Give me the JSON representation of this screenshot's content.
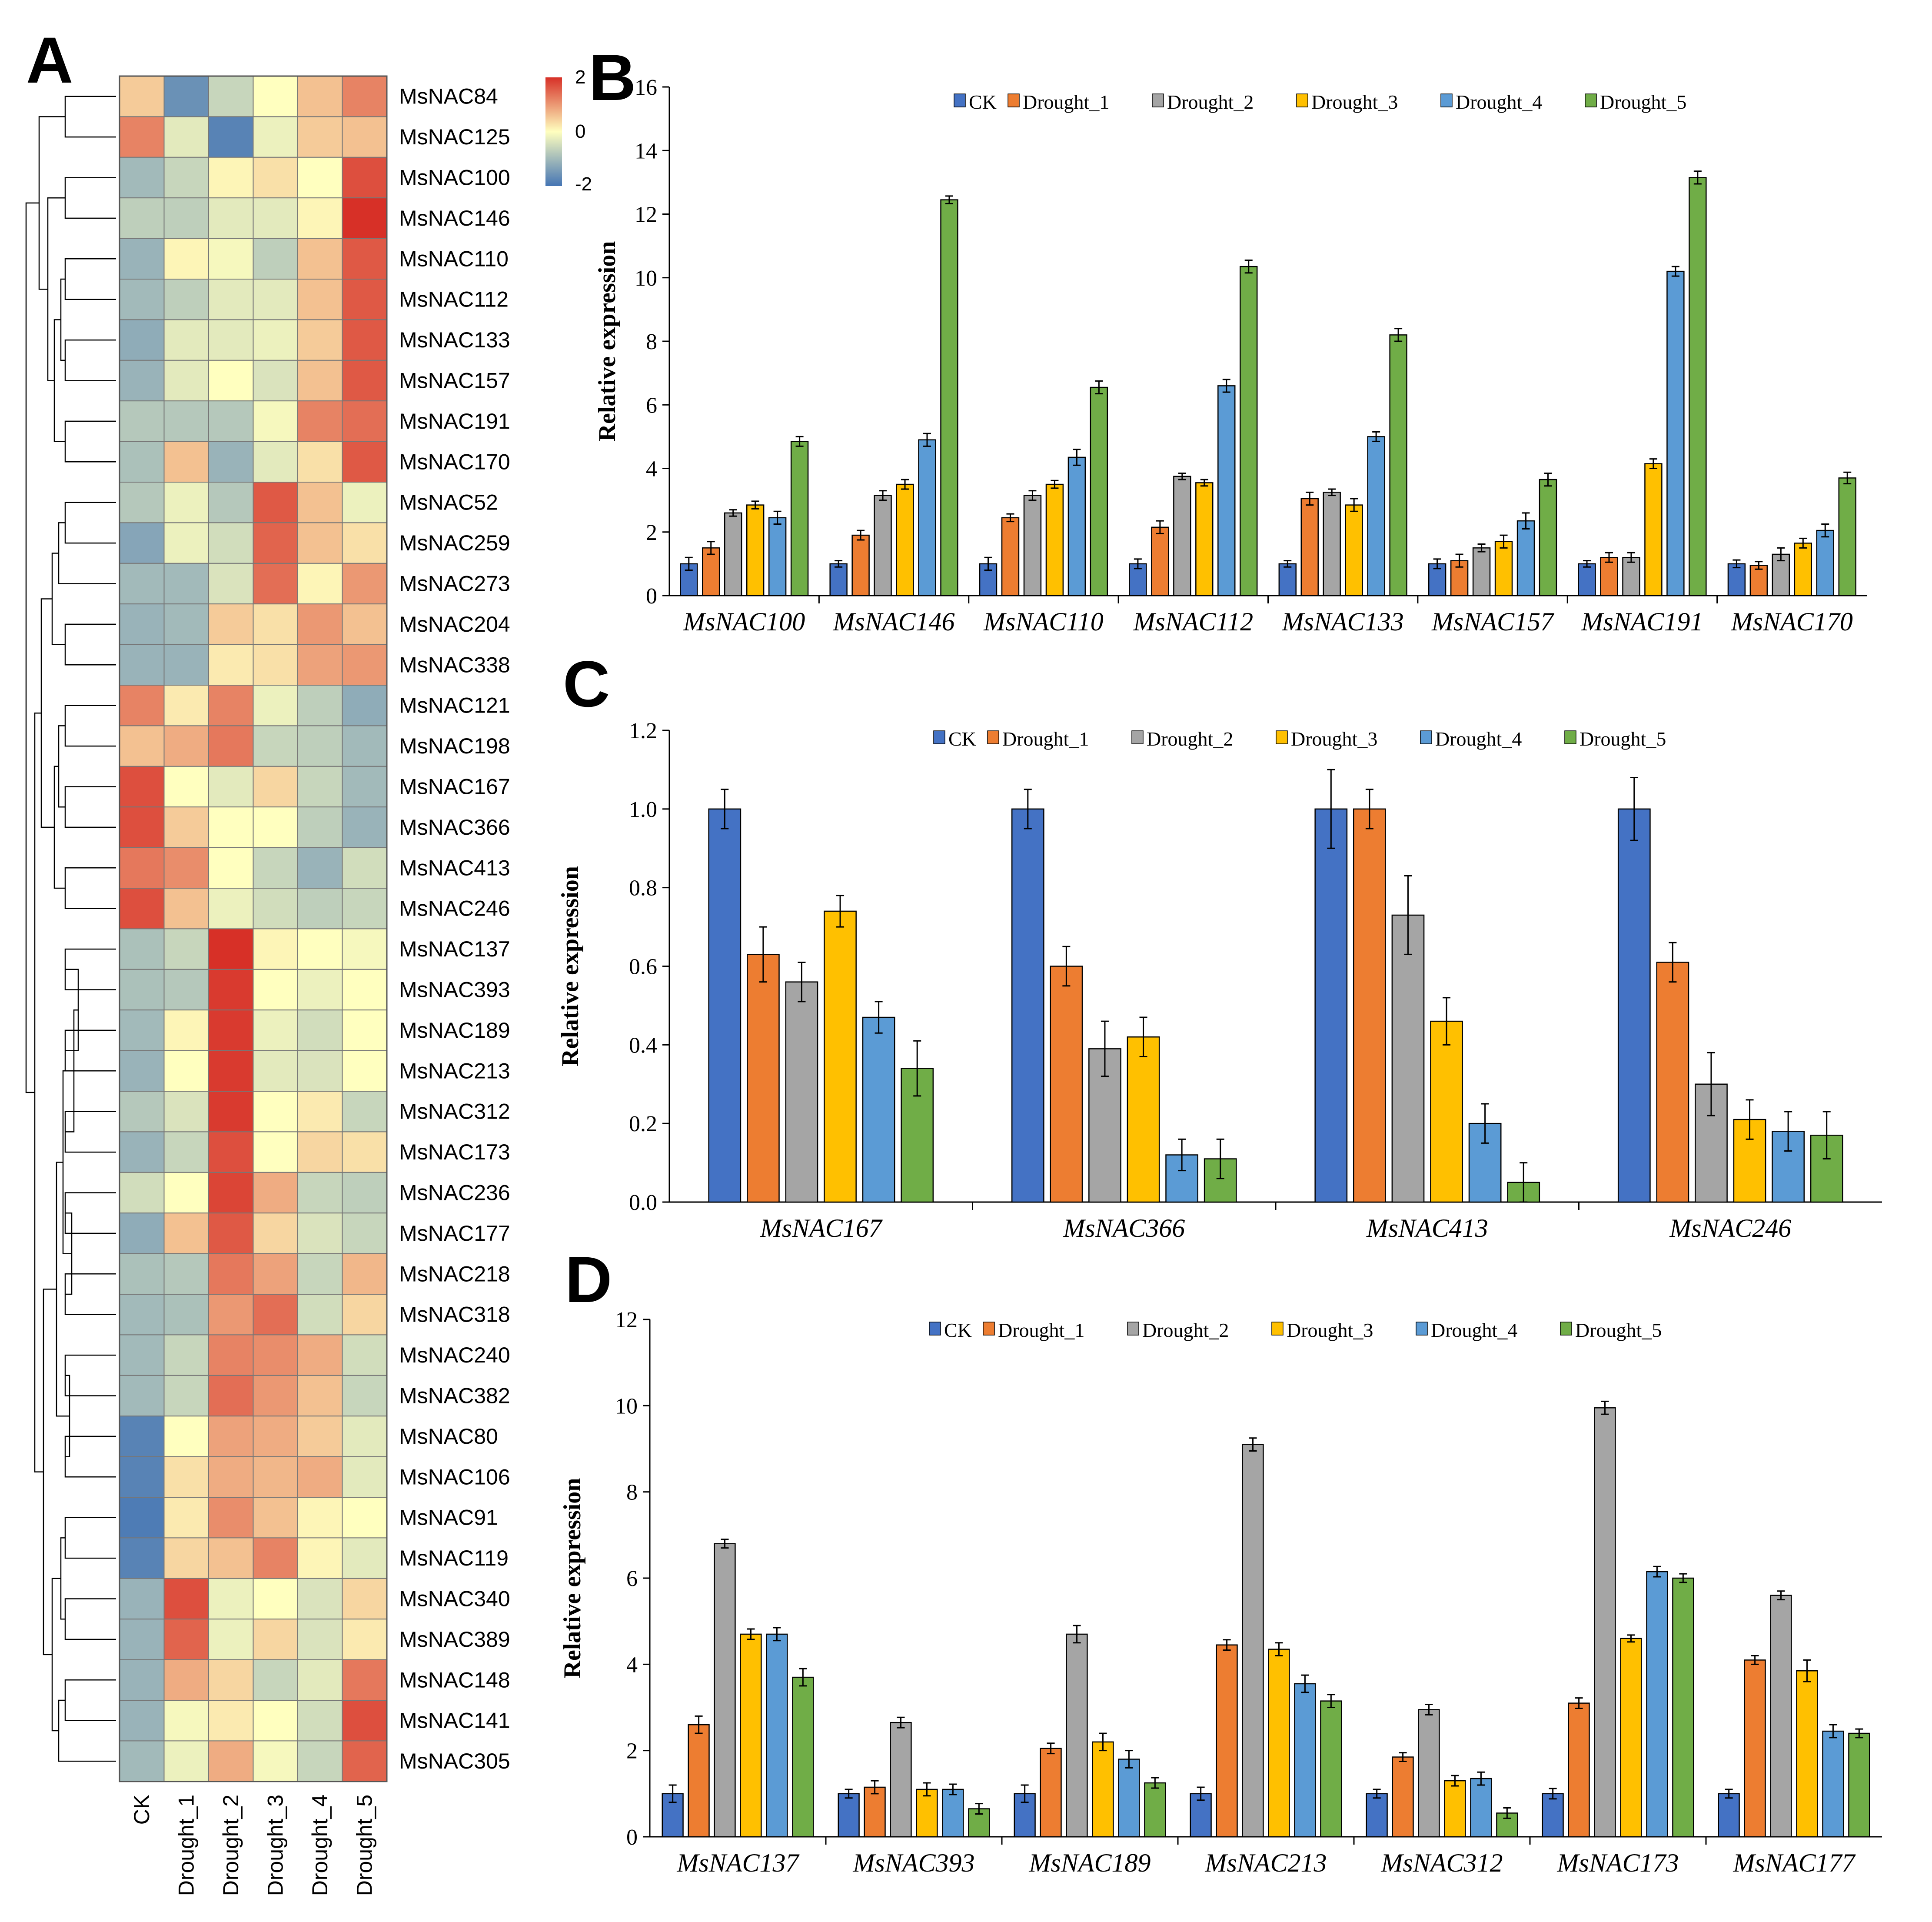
{
  "colors": {
    "series": [
      "#4472C4",
      "#ED7D31",
      "#A5A5A5",
      "#FFC000",
      "#5B9BD5",
      "#70AD47"
    ],
    "heat_low": "#4575b4",
    "heat_mid": "#ffffbf",
    "heat_high": "#d73027"
  },
  "panels": {
    "a": "A",
    "b": "B",
    "c": "C",
    "d": "D"
  },
  "chart_data": [
    {
      "type": "heatmap",
      "panel": "A",
      "title": "",
      "columns": [
        "CK",
        "Drought_1",
        "Drought_2",
        "Drought_3",
        "Drought_4",
        "Drought_5"
      ],
      "rows": [
        "MsNAC84",
        "MsNAC125",
        "MsNAC100",
        "MsNAC146",
        "MsNAC110",
        "MsNAC112",
        "MsNAC133",
        "MsNAC157",
        "MsNAC191",
        "MsNAC170",
        "MsNAC52",
        "MsNAC259",
        "MsNAC273",
        "MsNAC204",
        "MsNAC338",
        "MsNAC121",
        "MsNAC198",
        "MsNAC167",
        "MsNAC366",
        "MsNAC413",
        "MsNAC246",
        "MsNAC137",
        "MsNAC393",
        "MsNAC189",
        "MsNAC213",
        "MsNAC312",
        "MsNAC173",
        "MsNAC236",
        "MsNAC177",
        "MsNAC218",
        "MsNAC318",
        "MsNAC240",
        "MsNAC382",
        "MsNAC80",
        "MsNAC106",
        "MsNAC91",
        "MsNAC119",
        "MsNAC340",
        "MsNAC389",
        "MsNAC148",
        "MsNAC141",
        "MsNAC305"
      ],
      "values": [
        [
          0.5,
          -1.6,
          -0.6,
          0.0,
          0.6,
          1.2
        ],
        [
          1.2,
          -0.3,
          -1.8,
          -0.2,
          0.5,
          0.6
        ],
        [
          -1.0,
          -0.6,
          0.1,
          0.3,
          0.0,
          1.7
        ],
        [
          -0.7,
          -0.7,
          -0.3,
          -0.3,
          0.1,
          2.0
        ],
        [
          -1.1,
          0.1,
          -0.1,
          -0.7,
          0.6,
          1.6
        ],
        [
          -1.0,
          -0.7,
          -0.3,
          -0.3,
          0.6,
          1.6
        ],
        [
          -1.2,
          -0.3,
          -0.3,
          -0.2,
          0.5,
          1.6
        ],
        [
          -1.1,
          -0.3,
          0.0,
          -0.4,
          0.6,
          1.6
        ],
        [
          -0.8,
          -0.8,
          -0.8,
          -0.1,
          1.2,
          1.4
        ],
        [
          -0.9,
          0.6,
          -1.1,
          -0.3,
          0.3,
          1.6
        ],
        [
          -0.8,
          -0.2,
          -0.8,
          1.6,
          0.6,
          -0.2
        ],
        [
          -1.3,
          -0.2,
          -0.5,
          1.5,
          0.6,
          0.3
        ],
        [
          -1.0,
          -1.0,
          -0.4,
          1.4,
          0.1,
          1.0
        ],
        [
          -1.1,
          -1.0,
          0.5,
          0.3,
          1.0,
          0.6
        ],
        [
          -1.1,
          -1.1,
          0.2,
          0.3,
          0.9,
          1.0
        ],
        [
          1.2,
          0.2,
          1.2,
          -0.2,
          -0.7,
          -1.2
        ],
        [
          0.6,
          0.8,
          1.3,
          -0.6,
          -0.7,
          -1.0
        ],
        [
          1.7,
          0.0,
          -0.3,
          0.4,
          -0.6,
          -1.0
        ],
        [
          1.7,
          0.5,
          0.0,
          0.0,
          -0.7,
          -1.1
        ],
        [
          1.3,
          1.1,
          0.0,
          -0.6,
          -1.1,
          -0.5
        ],
        [
          1.7,
          0.6,
          -0.2,
          -0.5,
          -0.7,
          -0.6
        ],
        [
          -0.9,
          -0.6,
          2.0,
          0.1,
          0.0,
          -0.1
        ],
        [
          -0.9,
          -0.8,
          1.9,
          0.0,
          -0.2,
          0.0
        ],
        [
          -1.0,
          0.1,
          1.9,
          -0.2,
          -0.5,
          0.0
        ],
        [
          -1.1,
          0.0,
          1.9,
          -0.3,
          -0.4,
          0.0
        ],
        [
          -0.8,
          -0.4,
          1.9,
          0.0,
          0.2,
          -0.6
        ],
        [
          -1.1,
          -0.6,
          1.7,
          0.0,
          0.4,
          0.3
        ],
        [
          -0.5,
          0.0,
          1.8,
          0.8,
          -0.6,
          -0.7
        ],
        [
          -1.2,
          0.6,
          1.6,
          0.4,
          -0.4,
          -0.6
        ],
        [
          -0.9,
          -0.8,
          1.3,
          0.9,
          -0.6,
          0.7
        ],
        [
          -1.0,
          -0.9,
          1.0,
          1.4,
          -0.5,
          0.4
        ],
        [
          -1.0,
          -0.6,
          1.2,
          1.1,
          0.8,
          -0.5
        ],
        [
          -1.0,
          -0.6,
          1.4,
          1.0,
          0.6,
          -0.6
        ],
        [
          -1.8,
          0.0,
          0.9,
          0.8,
          0.5,
          -0.3
        ],
        [
          -1.8,
          0.3,
          0.8,
          0.7,
          0.8,
          -0.3
        ],
        [
          -1.9,
          0.2,
          1.1,
          0.6,
          0.1,
          0.0
        ],
        [
          -1.8,
          0.4,
          0.6,
          1.2,
          0.1,
          -0.3
        ],
        [
          -1.1,
          1.7,
          -0.2,
          0.0,
          -0.4,
          0.4
        ],
        [
          -1.1,
          1.5,
          -0.2,
          0.4,
          -0.4,
          0.2
        ],
        [
          -1.1,
          0.8,
          0.4,
          -0.6,
          -0.3,
          1.3
        ],
        [
          -1.1,
          -0.1,
          0.2,
          0.0,
          -0.5,
          1.7
        ],
        [
          -1.0,
          -0.2,
          0.8,
          -0.1,
          -0.6,
          1.5
        ]
      ],
      "scale": {
        "min": -2,
        "max": 2,
        "ticks": [
          "2",
          "0",
          "-2"
        ]
      }
    },
    {
      "type": "bar",
      "panel": "B",
      "title": "",
      "xlabel": "",
      "ylabel": "Relative expression",
      "ylim": [
        0,
        16
      ],
      "yticks": [
        "0",
        "2",
        "4",
        "6",
        "8",
        "10",
        "12",
        "14",
        "16"
      ],
      "categories": [
        "MsNAC100",
        "MsNAC146",
        "MsNAC110",
        "MsNAC112",
        "MsNAC133",
        "MsNAC157",
        "MsNAC191",
        "MsNAC170"
      ],
      "legend": "top",
      "series": [
        {
          "name": "CK",
          "values": [
            1.0,
            1.0,
            1.0,
            1.0,
            1.0,
            1.0,
            1.0,
            1.0
          ],
          "errors": [
            0.2,
            0.1,
            0.2,
            0.15,
            0.1,
            0.15,
            0.1,
            0.12
          ]
        },
        {
          "name": "Drought_1",
          "values": [
            1.5,
            1.9,
            2.45,
            2.15,
            3.05,
            1.1,
            1.2,
            0.95
          ],
          "errors": [
            0.2,
            0.15,
            0.12,
            0.2,
            0.2,
            0.2,
            0.15,
            0.12
          ]
        },
        {
          "name": "Drought_2",
          "values": [
            2.6,
            3.15,
            3.15,
            3.75,
            3.25,
            1.5,
            1.2,
            1.3
          ],
          "errors": [
            0.1,
            0.15,
            0.15,
            0.1,
            0.1,
            0.12,
            0.15,
            0.2
          ]
        },
        {
          "name": "Drought_3",
          "values": [
            2.85,
            3.5,
            3.5,
            3.55,
            2.85,
            1.7,
            4.15,
            1.65
          ],
          "errors": [
            0.12,
            0.15,
            0.12,
            0.1,
            0.2,
            0.2,
            0.15,
            0.15
          ]
        },
        {
          "name": "Drought_4",
          "values": [
            2.45,
            4.9,
            4.35,
            6.6,
            5.0,
            2.35,
            10.2,
            2.05
          ],
          "errors": [
            0.2,
            0.2,
            0.25,
            0.2,
            0.15,
            0.25,
            0.15,
            0.2
          ]
        },
        {
          "name": "Drought_5",
          "values": [
            4.85,
            12.45,
            6.55,
            10.35,
            8.2,
            3.65,
            13.15,
            3.7
          ],
          "errors": [
            0.15,
            0.12,
            0.2,
            0.2,
            0.2,
            0.2,
            0.2,
            0.18
          ]
        }
      ]
    },
    {
      "type": "bar",
      "panel": "C",
      "title": "",
      "xlabel": "",
      "ylabel": "Relative expression",
      "ylim": [
        0,
        1.2
      ],
      "yticks": [
        "0.0",
        "0.2",
        "0.4",
        "0.6",
        "0.8",
        "1.0",
        "1.2"
      ],
      "categories": [
        "MsNAC167",
        "MsNAC366",
        "MsNAC413",
        "MsNAC246"
      ],
      "legend": "top",
      "series": [
        {
          "name": "CK",
          "values": [
            1.0,
            1.0,
            1.0,
            1.0
          ],
          "errors": [
            0.05,
            0.05,
            0.1,
            0.08
          ]
        },
        {
          "name": "Drought_1",
          "values": [
            0.63,
            0.6,
            1.0,
            0.61
          ],
          "errors": [
            0.07,
            0.05,
            0.05,
            0.05
          ]
        },
        {
          "name": "Drought_2",
          "values": [
            0.56,
            0.39,
            0.73,
            0.3
          ],
          "errors": [
            0.05,
            0.07,
            0.1,
            0.08
          ]
        },
        {
          "name": "Drought_3",
          "values": [
            0.74,
            0.42,
            0.46,
            0.21
          ],
          "errors": [
            0.04,
            0.05,
            0.06,
            0.05
          ]
        },
        {
          "name": "Drought_4",
          "values": [
            0.47,
            0.12,
            0.2,
            0.18
          ],
          "errors": [
            0.04,
            0.04,
            0.05,
            0.05
          ]
        },
        {
          "name": "Drought_5",
          "values": [
            0.34,
            0.11,
            0.05,
            0.17
          ],
          "errors": [
            0.07,
            0.05,
            0.05,
            0.06
          ]
        }
      ]
    },
    {
      "type": "bar",
      "panel": "D",
      "title": "",
      "xlabel": "",
      "ylabel": "Relative expression",
      "ylim": [
        0,
        12
      ],
      "yticks": [
        "0",
        "2",
        "4",
        "6",
        "8",
        "10",
        "12"
      ],
      "categories": [
        "MsNAC137",
        "MsNAC393",
        "MsNAC189",
        "MsNAC213",
        "MsNAC312",
        "MsNAC173",
        "MsNAC177"
      ],
      "legend": "top",
      "series": [
        {
          "name": "CK",
          "values": [
            1.0,
            1.0,
            1.0,
            1.0,
            1.0,
            1.0,
            1.0
          ],
          "errors": [
            0.2,
            0.1,
            0.2,
            0.15,
            0.1,
            0.12,
            0.1
          ]
        },
        {
          "name": "Drought_1",
          "values": [
            2.6,
            1.15,
            2.05,
            4.45,
            1.85,
            3.1,
            4.1
          ],
          "errors": [
            0.2,
            0.15,
            0.12,
            0.12,
            0.1,
            0.12,
            0.1
          ]
        },
        {
          "name": "Drought_2",
          "values": [
            6.8,
            2.65,
            4.7,
            9.1,
            2.95,
            9.95,
            5.6
          ],
          "errors": [
            0.1,
            0.12,
            0.2,
            0.15,
            0.12,
            0.15,
            0.1
          ]
        },
        {
          "name": "Drought_3",
          "values": [
            4.7,
            1.1,
            2.2,
            4.35,
            1.3,
            4.6,
            3.85
          ],
          "errors": [
            0.12,
            0.15,
            0.2,
            0.15,
            0.12,
            0.08,
            0.25
          ]
        },
        {
          "name": "Drought_4",
          "values": [
            4.7,
            1.1,
            1.8,
            3.55,
            1.35,
            6.15,
            2.45
          ],
          "errors": [
            0.15,
            0.12,
            0.2,
            0.2,
            0.15,
            0.12,
            0.15
          ]
        },
        {
          "name": "Drought_5",
          "values": [
            3.7,
            0.65,
            1.25,
            3.15,
            0.55,
            6.0,
            2.4
          ],
          "errors": [
            0.2,
            0.12,
            0.12,
            0.15,
            0.12,
            0.1,
            0.1
          ]
        }
      ]
    }
  ]
}
